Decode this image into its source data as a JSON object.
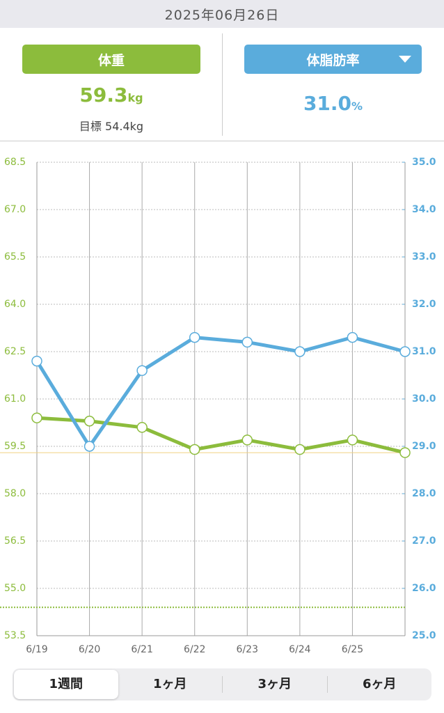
{
  "header": {
    "date": "2025年06月26日"
  },
  "weight_panel": {
    "button": "体重",
    "value": 59.3,
    "unit": "kg",
    "goal_label": "目標",
    "goal": 54.4,
    "goal_unit": "kg"
  },
  "fat_panel": {
    "button": "体脂肪率",
    "value": "31.0",
    "unit": "%"
  },
  "chart_data": {
    "type": "line",
    "categories": [
      "6/19",
      "6/20",
      "6/21",
      "6/22",
      "6/23",
      "6/24",
      "6/25",
      null
    ],
    "series": [
      {
        "name": "体重",
        "color": "#8cbc3c",
        "values": [
          60.4,
          60.3,
          60.1,
          59.4,
          59.7,
          59.4,
          59.7,
          59.3
        ]
      },
      {
        "name": "体脂肪率",
        "color": "#5aacdc",
        "axis": "y2",
        "values": [
          30.8,
          29.0,
          30.6,
          31.3,
          31.2,
          31.0,
          31.3,
          31.0
        ]
      }
    ],
    "ylim": [
      53.5,
      68.5
    ],
    "yticks": [
      {
        "value": 53.5,
        "label": "53.5"
      },
      {
        "value": 55,
        "label": "55.0"
      },
      {
        "value": 56.5,
        "label": "56.5"
      },
      {
        "value": 58,
        "label": "58.0"
      },
      {
        "value": 59.5,
        "label": "59.5"
      },
      {
        "value": 61,
        "label": "61.0"
      },
      {
        "value": 62.5,
        "label": "62.5"
      },
      {
        "value": 64,
        "label": "64.0"
      },
      {
        "value": 65.5,
        "label": "65.5"
      },
      {
        "value": 67,
        "label": "67.0"
      },
      {
        "value": 68.5,
        "label": "68.5"
      }
    ],
    "y2lim": [
      25,
      35
    ],
    "y2ticks": [
      {
        "value": 25,
        "label": "25.0"
      },
      {
        "value": 26,
        "label": "26.0"
      },
      {
        "value": 27,
        "label": "27.0"
      },
      {
        "value": 28,
        "label": "28.0"
      },
      {
        "value": 29,
        "label": "29.0"
      },
      {
        "value": 30,
        "label": "30.0"
      },
      {
        "value": 31,
        "label": "31.0"
      },
      {
        "value": 32,
        "label": "32.0"
      },
      {
        "value": 33,
        "label": "33.0"
      },
      {
        "value": 34,
        "label": "34.0"
      },
      {
        "value": 35,
        "label": "35.0"
      }
    ],
    "grid": true
  },
  "tabs": [
    "1週間",
    "1ヶ月",
    "3ヶ月",
    "6ヶ月"
  ]
}
